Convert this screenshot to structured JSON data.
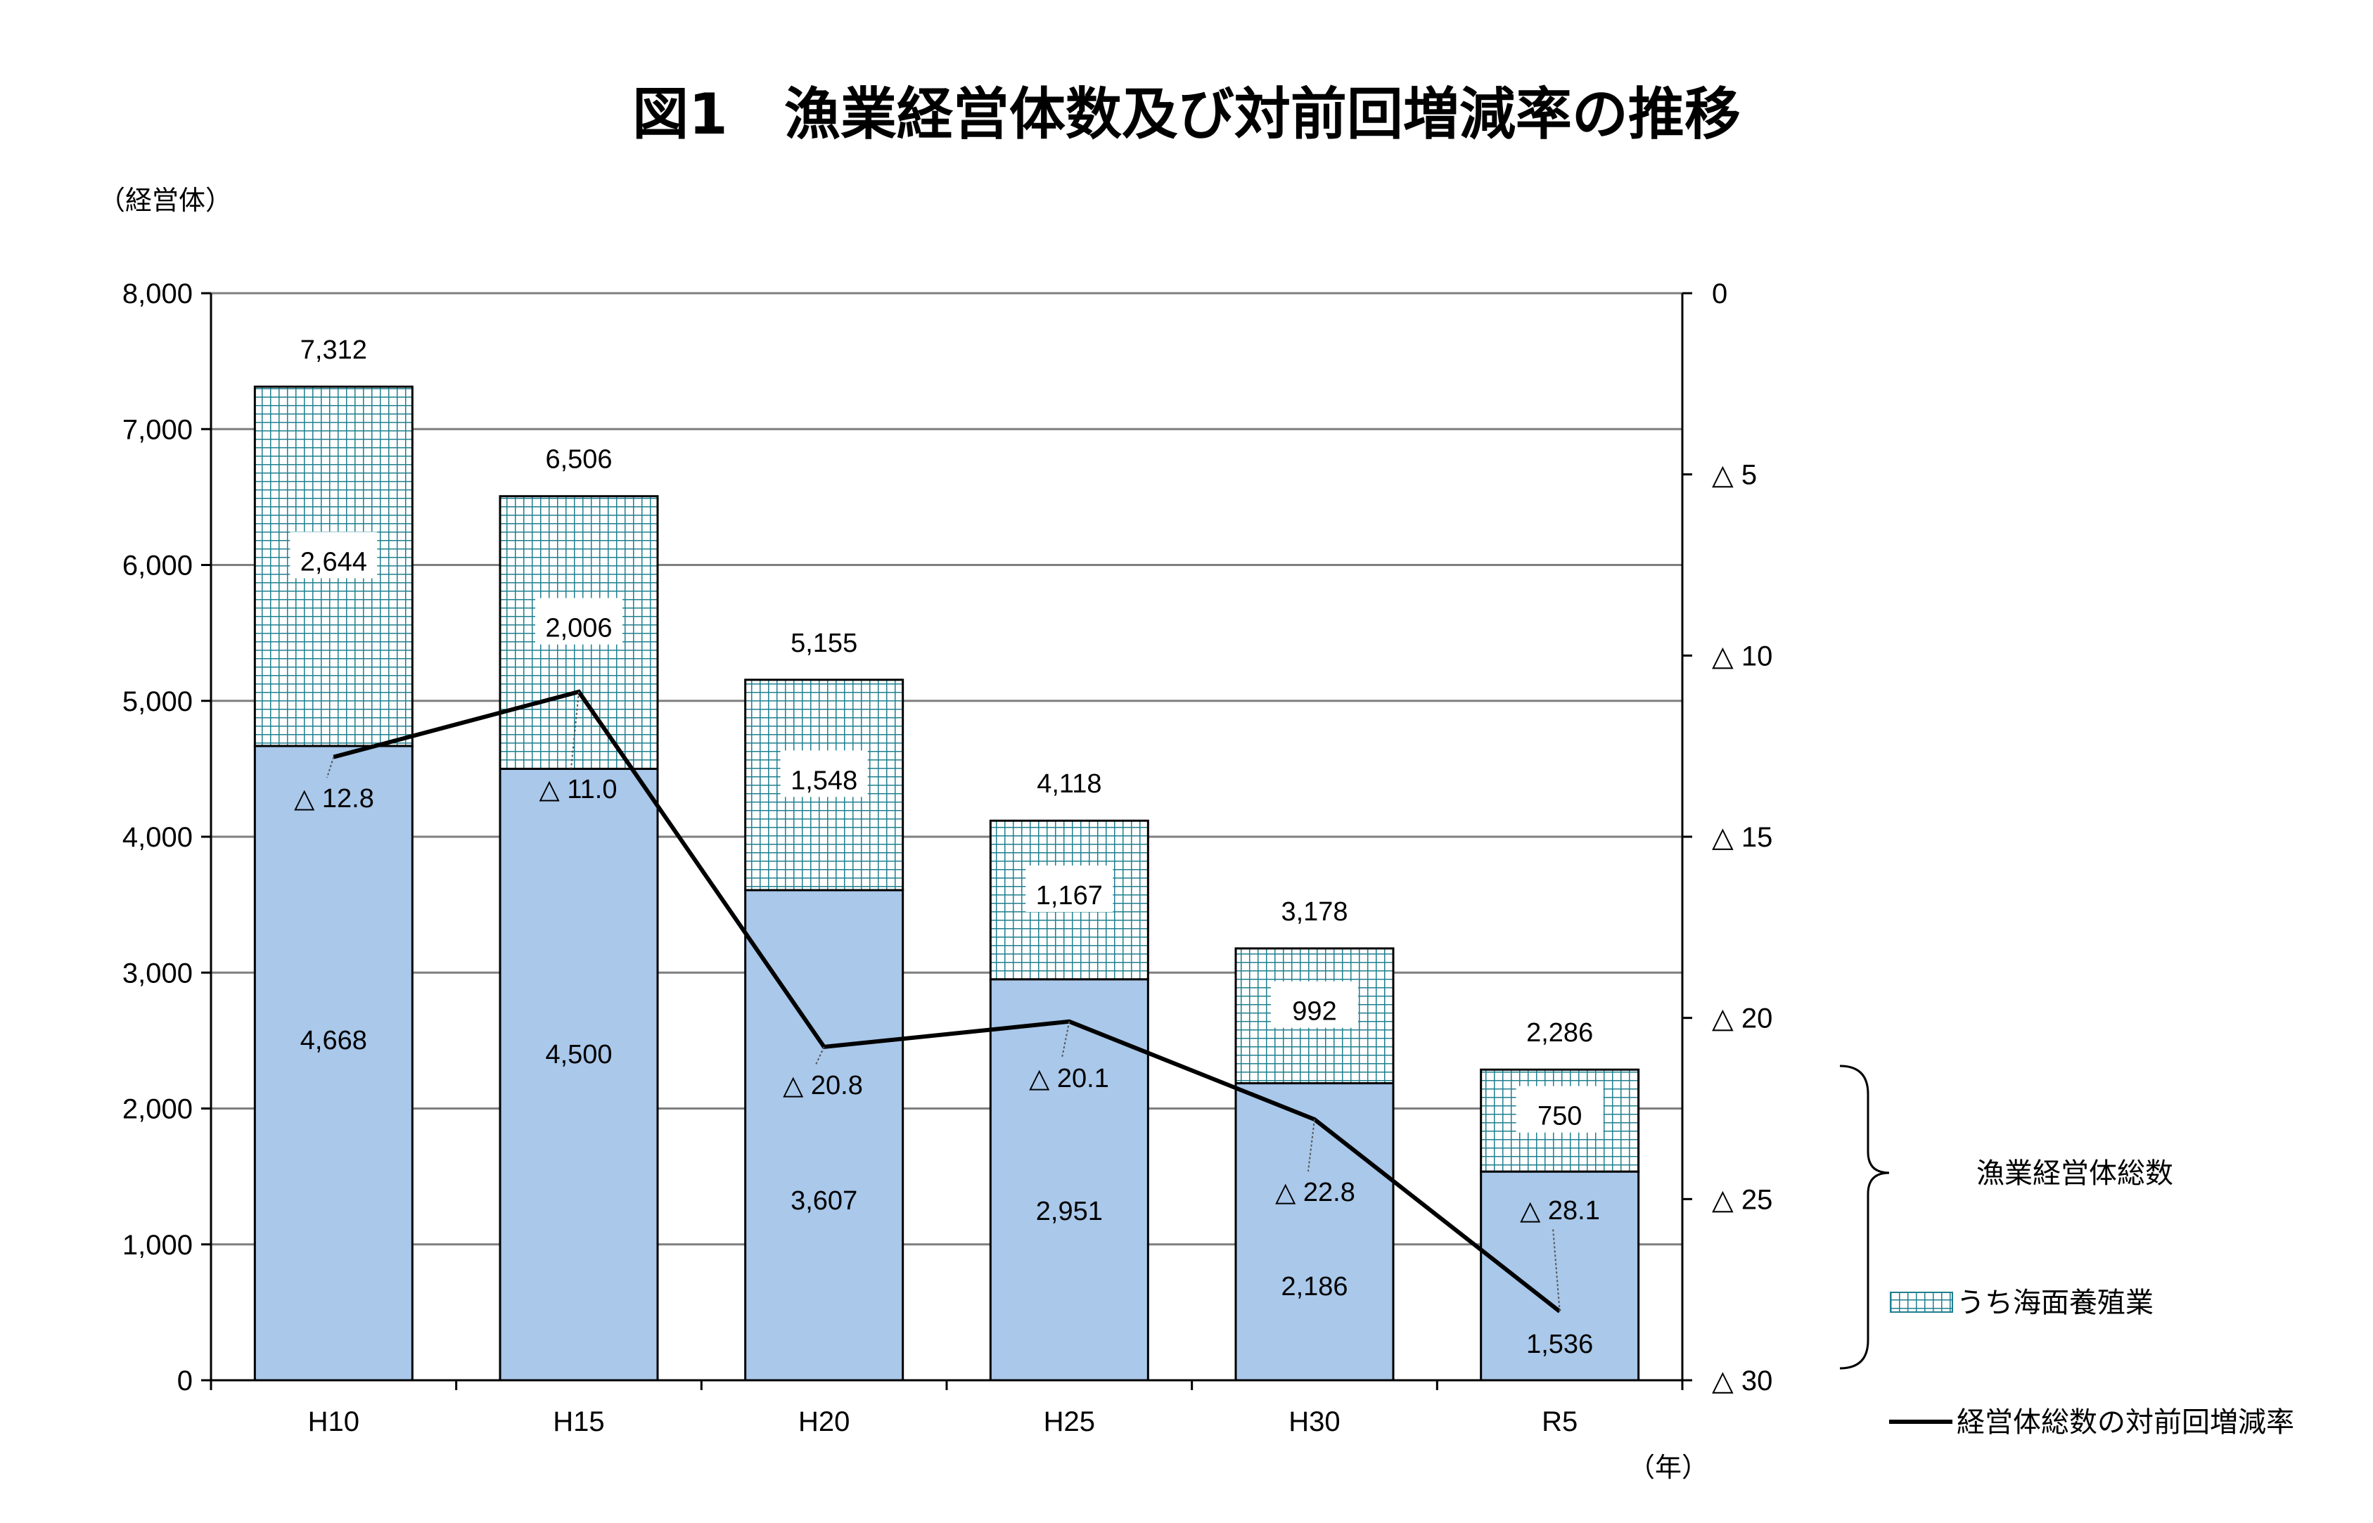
{
  "title": "図1　漁業経営体数及び対前回増減率の推移",
  "y_left_unit": "（経営体）",
  "x_unit": "（年）",
  "delta_symbol": "△",
  "colors": {
    "base_fill": "#a9c8ea",
    "aqua_fill": "#ffffff",
    "aqua_grid": "#1f7f8f",
    "line": "#000000",
    "gridline": "#7f7f7f"
  },
  "chart_data": {
    "type": "bar",
    "stacked": true,
    "categories": [
      "H10",
      "H15",
      "H20",
      "H25",
      "H30",
      "R5"
    ],
    "series": [
      {
        "values": [
          4668,
          4500,
          3607,
          2951,
          2186,
          1536
        ]
      },
      {
        "name": "うち海面養殖業",
        "values": [
          2644,
          2006,
          1548,
          1167,
          992,
          750
        ]
      }
    ],
    "totals": [
      7312,
      6506,
      5155,
      4118,
      3178,
      2286
    ],
    "total_labels": [
      "7,312",
      "6,506",
      "5,155",
      "4,118",
      "3,178",
      "2,286"
    ],
    "base_labels": [
      "4,668",
      "4,500",
      "3,607",
      "2,951",
      "2,186",
      "1,536"
    ],
    "aqua_labels": [
      "2,644",
      "2,006",
      "1,548",
      "1,167",
      "992",
      "750"
    ],
    "line": {
      "name": "経営体総数の対前回増減率",
      "axis": "right",
      "values": [
        -12.8,
        -11.0,
        -20.8,
        -20.1,
        -22.8,
        -28.1
      ],
      "labels": [
        "△ 12.8",
        "△ 11.0",
        "△ 20.8",
        "△ 20.1",
        "△ 22.8",
        "△ 28.1"
      ]
    },
    "y_left": {
      "range": [
        0,
        8000
      ],
      "ticks": [
        "0",
        "1,000",
        "2,000",
        "3,000",
        "4,000",
        "5,000",
        "6,000",
        "7,000",
        "8,000"
      ]
    },
    "y_right": {
      "range": [
        0,
        -30
      ],
      "ticks": [
        "0",
        "△ 5",
        "△ 10",
        "△ 15",
        "△ 20",
        "△ 25",
        "△ 30"
      ]
    },
    "grid": true,
    "legend": {
      "brace_label": "漁業経営体総数",
      "aqua_label": "うち海面養殖業",
      "line_label": "経営体総数の対前回増減率",
      "position": "right"
    }
  }
}
